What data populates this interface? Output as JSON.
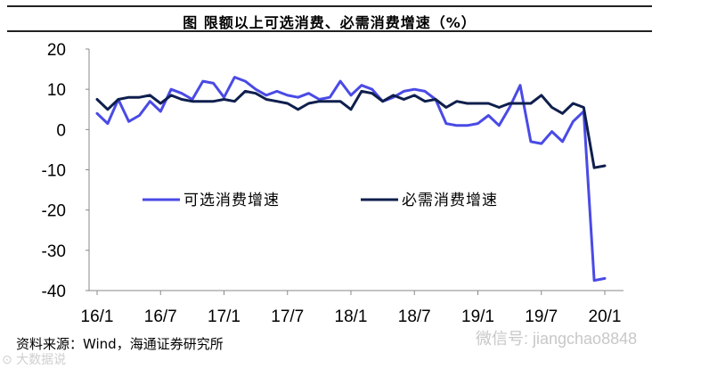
{
  "title": "图  限额以上可选消费、必需消费增速（%）",
  "source": "资料来源：Wind，海通证券研究所",
  "watermark_left": "⊙ 大数据说",
  "watermark_right": "微信号: jiangchao8848",
  "chart_data": {
    "type": "line",
    "x_ticks": [
      "16/1",
      "16/7",
      "17/1",
      "17/7",
      "18/1",
      "18/7",
      "19/1",
      "19/7",
      "20/1"
    ],
    "y_ticks": [
      20,
      10,
      0,
      -10,
      -20,
      -30,
      -40
    ],
    "ylim": [
      -40,
      20
    ],
    "grid": false,
    "legend_position": "center-left",
    "colors": {
      "optional": "#4a4ae6",
      "necessary": "#0f1f4d"
    },
    "series": [
      {
        "name": "可选消费增速",
        "values": [
          4,
          1.5,
          7.5,
          2,
          3.5,
          7,
          4.5,
          10,
          9,
          7.5,
          12,
          11.5,
          8,
          13,
          12,
          10,
          8.5,
          9.5,
          8.5,
          8,
          9,
          7.5,
          8,
          12,
          8.5,
          11,
          10,
          7,
          8,
          9.5,
          10,
          9.5,
          7.5,
          1.5,
          1,
          1,
          1.5,
          3.5,
          1,
          5.5,
          11,
          -3,
          -3.5,
          -0.5,
          -3,
          2,
          4.5,
          -37.5,
          -37
        ]
      },
      {
        "name": "必需消费增速",
        "values": [
          7.5,
          5,
          7.5,
          8,
          8,
          8.5,
          6.5,
          8.5,
          7.5,
          7,
          7,
          7,
          7.5,
          7,
          9.5,
          9,
          7.5,
          7,
          6.5,
          5,
          6.5,
          7,
          7,
          7,
          5,
          9.5,
          9,
          7,
          8.5,
          7.5,
          8.5,
          7,
          7.5,
          5.5,
          7,
          6.5,
          6.5,
          6.5,
          5.5,
          6.5,
          6.5,
          6.5,
          8.5,
          5.5,
          4,
          6.5,
          5.5,
          -9.5,
          -9
        ]
      }
    ]
  }
}
